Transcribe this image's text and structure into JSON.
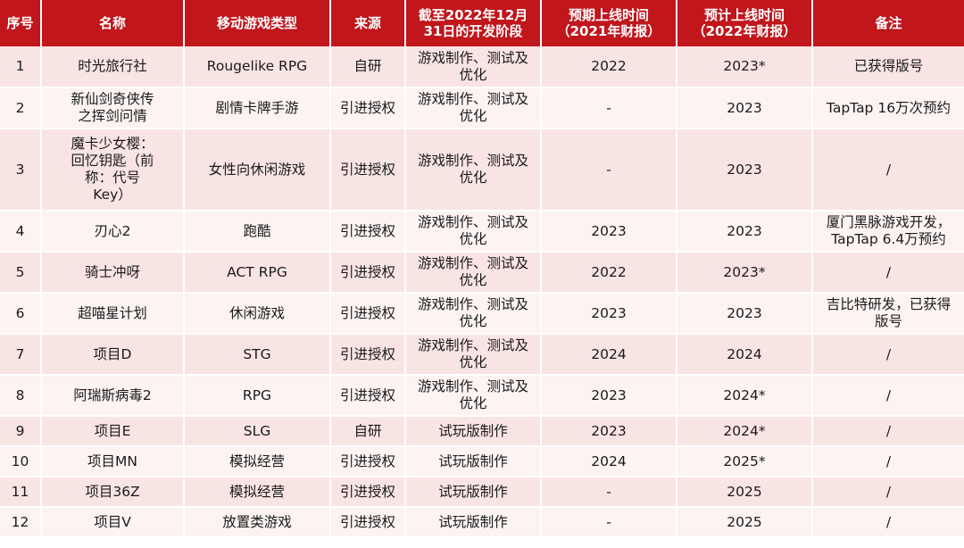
{
  "headers": [
    "序号",
    "名称",
    "移动游戏类型",
    "来源",
    "截至2022年12月\n31日的开发阶段",
    "预期上线时间\n（2021年财报）",
    "预计上线时间\n（2022年财报）",
    "备注"
  ],
  "rows": [
    [
      "1",
      "时光旅行社",
      "Rougelike RPG",
      "自研",
      "游戏制作、测试及\n优化",
      "2022",
      "2023*",
      "已获得版号"
    ],
    [
      "2",
      "新仙剑奇侠传\n之挥剑问情",
      "剧情卡牌手游",
      "引进授权",
      "游戏制作、测试及\n优化",
      "-",
      "2023",
      "TapTap 16万次预约"
    ],
    [
      "3",
      "魔卡少女樱：\n回忆钥匙（前\n称：代号\nKey）",
      "女性向休闲游戏",
      "引进授权",
      "游戏制作、测试及\n优化",
      "-",
      "2023",
      "/"
    ],
    [
      "4",
      "刃心2",
      "跑酷",
      "引进授权",
      "游戏制作、测试及\n优化",
      "2023",
      "2023",
      "厦门黑脉游戏开发，\nTapTap 6.4万预约"
    ],
    [
      "5",
      "骑士冲呀",
      "ACT RPG",
      "引进授权",
      "游戏制作、测试及\n优化",
      "2022",
      "2023*",
      "/"
    ],
    [
      "6",
      "超喵星计划",
      "休闲游戏",
      "引进授权",
      "游戏制作、测试及\n优化",
      "2023",
      "2023",
      "吉比特研发，已获得\n版号"
    ],
    [
      "7",
      "项目D",
      "STG",
      "引进授权",
      "游戏制作、测试及\n优化",
      "2024",
      "2024",
      "/"
    ],
    [
      "8",
      "阿瑞斯病毒2",
      "RPG",
      "引进授权",
      "游戏制作、测试及\n优化",
      "2023",
      "2024*",
      "/"
    ],
    [
      "9",
      "项目E",
      "SLG",
      "自研",
      "试玩版制作",
      "2023",
      "2024*",
      "/"
    ],
    [
      "10",
      "项目MN",
      "模拟经营",
      "引进授权",
      "试玩版制作",
      "2024",
      "2025*",
      "/"
    ],
    [
      "11",
      "项目36Z",
      "模拟经营",
      "引进授权",
      "试玩版制作",
      "-",
      "2025",
      "/"
    ],
    [
      "12",
      "项目V",
      "放置类游戏",
      "引进授权",
      "试玩版制作",
      "-",
      "2025",
      "/"
    ]
  ]
}
